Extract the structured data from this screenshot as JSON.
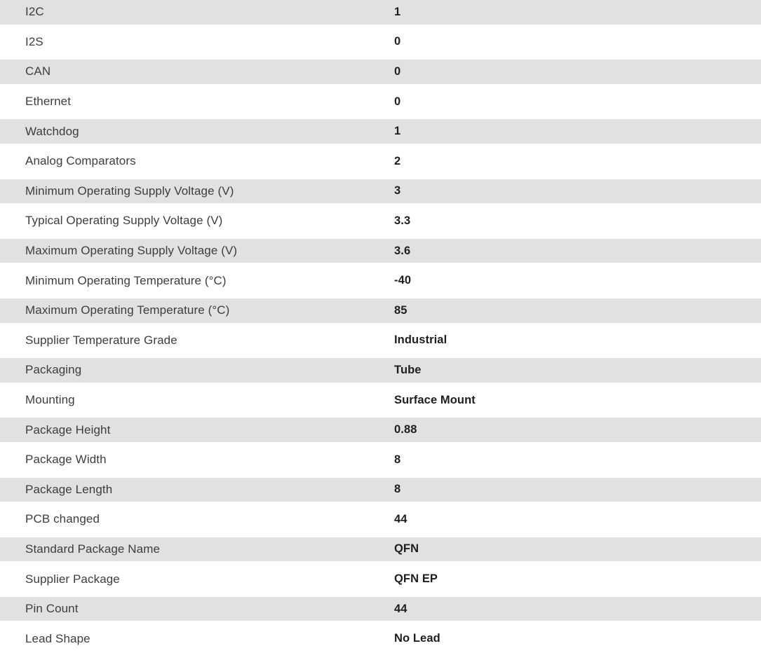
{
  "colors": {
    "row_alt_bg": "#e1e1e1",
    "row_bg": "#ffffff",
    "label_text": "#3d3d3d",
    "value_text": "#1e1e1e"
  },
  "spec_table": {
    "rows": [
      {
        "label": "I2C",
        "value": "1"
      },
      {
        "label": "I2S",
        "value": "0"
      },
      {
        "label": "CAN",
        "value": "0"
      },
      {
        "label": "Ethernet",
        "value": "0"
      },
      {
        "label": "Watchdog",
        "value": "1"
      },
      {
        "label": "Analog Comparators",
        "value": "2"
      },
      {
        "label": "Minimum Operating Supply Voltage (V)",
        "value": "3"
      },
      {
        "label": "Typical Operating Supply Voltage (V)",
        "value": "3.3"
      },
      {
        "label": "Maximum Operating Supply Voltage (V)",
        "value": "3.6"
      },
      {
        "label": "Minimum Operating Temperature (°C)",
        "value": "-40"
      },
      {
        "label": "Maximum Operating Temperature (°C)",
        "value": "85"
      },
      {
        "label": "Supplier Temperature Grade",
        "value": "Industrial"
      },
      {
        "label": "Packaging",
        "value": "Tube"
      },
      {
        "label": "Mounting",
        "value": "Surface Mount"
      },
      {
        "label": "Package Height",
        "value": "0.88"
      },
      {
        "label": "Package Width",
        "value": "8"
      },
      {
        "label": "Package Length",
        "value": "8"
      },
      {
        "label": "PCB changed",
        "value": "44"
      },
      {
        "label": "Standard Package Name",
        "value": "QFN"
      },
      {
        "label": "Supplier Package",
        "value": "QFN EP"
      },
      {
        "label": "Pin Count",
        "value": "44"
      },
      {
        "label": "Lead Shape",
        "value": "No Lead"
      }
    ]
  }
}
